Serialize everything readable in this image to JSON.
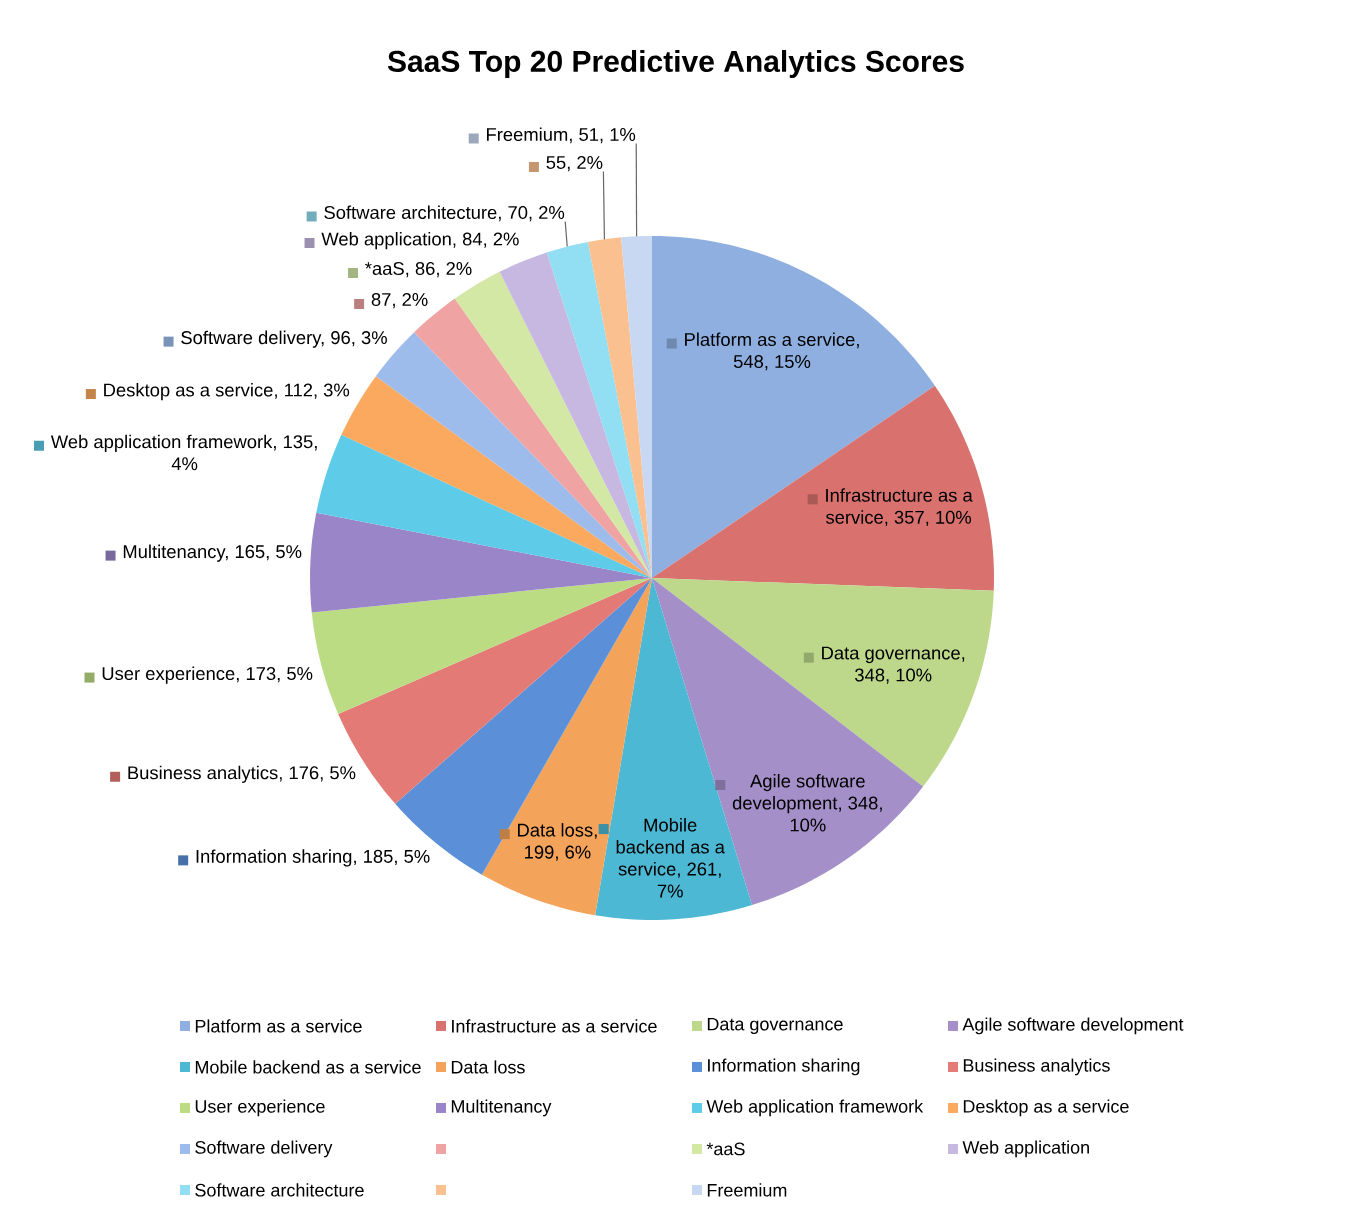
{
  "chart_data": {
    "type": "pie",
    "title": "SaaS Top 20 Predictive Analytics Scores",
    "categories": [
      "Platform as a service",
      "Infrastructure as a service",
      "Data governance",
      "Agile software development",
      "Mobile backend as a service",
      "Data loss",
      "Information sharing",
      "Business analytics",
      "User experience",
      "Multitenancy",
      "Web application framework",
      "Desktop as a service",
      "Software delivery",
      null,
      "*aaS",
      "Web application",
      "Software architecture",
      null,
      "Freemium"
    ],
    "values": [
      548,
      357,
      348,
      348,
      261,
      199,
      185,
      176,
      173,
      165,
      135,
      112,
      96,
      87,
      86,
      84,
      70,
      55,
      51
    ],
    "colors": [
      "#8eafe0",
      "#d9726e",
      "#bdd88a",
      "#a48fc8",
      "#4db8d4",
      "#f4a35a",
      "#5b90d8",
      "#e47a76",
      "#bcdc84",
      "#9a85c8",
      "#5ecbe8",
      "#fba95f",
      "#9dbcec",
      "#f0a3a3",
      "#d4e8a6",
      "#c6b8e0",
      "#92def2",
      "#fbc08f",
      "#c8d8f2"
    ],
    "value_labels": [
      "Platform as a service, 548, 15%",
      "Infrastructure as a service, 357, 10%",
      "Data governance, 348, 10%",
      "Agile software development, 348, 10%",
      "Mobile backend as a service, 261, 7%",
      "Data loss, 199, 6%",
      "Information sharing, 185, 5%",
      "Business analytics, 176, 5%",
      "User experience, 173, 5%",
      "Multitenancy, 165, 5%",
      "Web application framework, 135, 4%",
      "Desktop as a service, 112, 3%",
      "Software delivery, 96, 3%",
      "87, 2%",
      "*aaS, 86, 2%",
      "Web application, 84, 2%",
      "Software architecture, 70, 2%",
      "55, 2%",
      "Freemium, 51, 1%"
    ],
    "legend": "bottom"
  }
}
